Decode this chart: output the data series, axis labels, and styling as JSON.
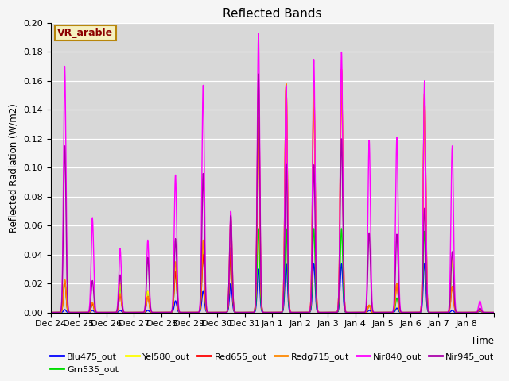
{
  "title": "Reflected Bands",
  "xlabel": "Time",
  "ylabel": "Reflected Radiation (W/m2)",
  "annotation": "VR_arable",
  "ylim": [
    0,
    0.2
  ],
  "figsize": [
    6.4,
    4.8
  ],
  "dpi": 100,
  "bg_color": "#d8d8d8",
  "series": [
    {
      "name": "Blu475_out",
      "color": "#0000ff",
      "key": "Blu475"
    },
    {
      "name": "Grn535_out",
      "color": "#00dd00",
      "key": "Grn535"
    },
    {
      "name": "Yel580_out",
      "color": "#ffff00",
      "key": "Yel580"
    },
    {
      "name": "Red655_out",
      "color": "#ff0000",
      "key": "Red655"
    },
    {
      "name": "Redg715_out",
      "color": "#ff8800",
      "key": "Redg715"
    },
    {
      "name": "Nir840_out",
      "color": "#ff00ff",
      "key": "Nir840"
    },
    {
      "name": "Nir945_out",
      "color": "#aa00aa",
      "key": "Nir945"
    }
  ],
  "tick_labels": [
    "Dec 24",
    "Dec 25",
    "Dec 26",
    "Dec 27",
    "Dec 28",
    "Dec 29",
    "Dec 30",
    "Dec 31",
    "Jan 1",
    "Jan 2",
    "Jan 3",
    "Jan 4",
    "Jan 5",
    "Jan 6",
    "Jan 7",
    "Jan 8"
  ],
  "day_peaks": [
    {
      "Blu475": 0.002,
      "Grn535": 0.022,
      "Yel580": 0.023,
      "Red655": 0.022,
      "Redg715": 0.023,
      "Nir840": 0.17,
      "Nir945": 0.115
    },
    {
      "Blu475": 0.0015,
      "Grn535": 0.006,
      "Yel580": 0.006,
      "Red655": 0.006,
      "Redg715": 0.007,
      "Nir840": 0.065,
      "Nir945": 0.022
    },
    {
      "Blu475": 0.0015,
      "Grn535": 0.018,
      "Yel580": 0.02,
      "Red655": 0.012,
      "Redg715": 0.013,
      "Nir840": 0.044,
      "Nir945": 0.026
    },
    {
      "Blu475": 0.0015,
      "Grn535": 0.015,
      "Yel580": 0.015,
      "Red655": 0.011,
      "Redg715": 0.011,
      "Nir840": 0.05,
      "Nir945": 0.038
    },
    {
      "Blu475": 0.008,
      "Grn535": 0.028,
      "Yel580": 0.03,
      "Red655": 0.028,
      "Redg715": 0.035,
      "Nir840": 0.095,
      "Nir945": 0.051
    },
    {
      "Blu475": 0.015,
      "Grn535": 0.042,
      "Yel580": 0.05,
      "Red655": 0.04,
      "Redg715": 0.05,
      "Nir840": 0.157,
      "Nir945": 0.096
    },
    {
      "Blu475": 0.02,
      "Grn535": 0.045,
      "Yel580": 0.065,
      "Red655": 0.045,
      "Redg715": 0.065,
      "Nir840": 0.07,
      "Nir945": 0.067
    },
    {
      "Blu475": 0.03,
      "Grn535": 0.058,
      "Yel580": 0.135,
      "Red655": 0.135,
      "Redg715": 0.16,
      "Nir840": 0.193,
      "Nir945": 0.165
    },
    {
      "Blu475": 0.034,
      "Grn535": 0.058,
      "Yel580": 0.158,
      "Red655": 0.158,
      "Redg715": 0.158,
      "Nir840": 0.157,
      "Nir945": 0.103
    },
    {
      "Blu475": 0.034,
      "Grn535": 0.058,
      "Yel580": 0.158,
      "Red655": 0.158,
      "Redg715": 0.158,
      "Nir840": 0.175,
      "Nir945": 0.102
    },
    {
      "Blu475": 0.034,
      "Grn535": 0.058,
      "Yel580": 0.168,
      "Red655": 0.168,
      "Redg715": 0.168,
      "Nir840": 0.18,
      "Nir945": 0.12
    },
    {
      "Blu475": 0.0015,
      "Grn535": 0.005,
      "Yel580": 0.005,
      "Red655": 0.005,
      "Redg715": 0.005,
      "Nir840": 0.119,
      "Nir945": 0.055
    },
    {
      "Blu475": 0.003,
      "Grn535": 0.01,
      "Yel580": 0.02,
      "Red655": 0.02,
      "Redg715": 0.02,
      "Nir840": 0.121,
      "Nir945": 0.054
    },
    {
      "Blu475": 0.034,
      "Grn535": 0.056,
      "Yel580": 0.152,
      "Red655": 0.152,
      "Redg715": 0.152,
      "Nir840": 0.16,
      "Nir945": 0.072
    },
    {
      "Blu475": 0.0015,
      "Grn535": 0.038,
      "Yel580": 0.038,
      "Red655": 0.018,
      "Redg715": 0.018,
      "Nir840": 0.115,
      "Nir945": 0.042
    },
    {
      "Blu475": 0.001,
      "Grn535": 0.002,
      "Yel580": 0.002,
      "Red655": 0.002,
      "Redg715": 0.002,
      "Nir840": 0.008,
      "Nir945": 0.003
    }
  ]
}
